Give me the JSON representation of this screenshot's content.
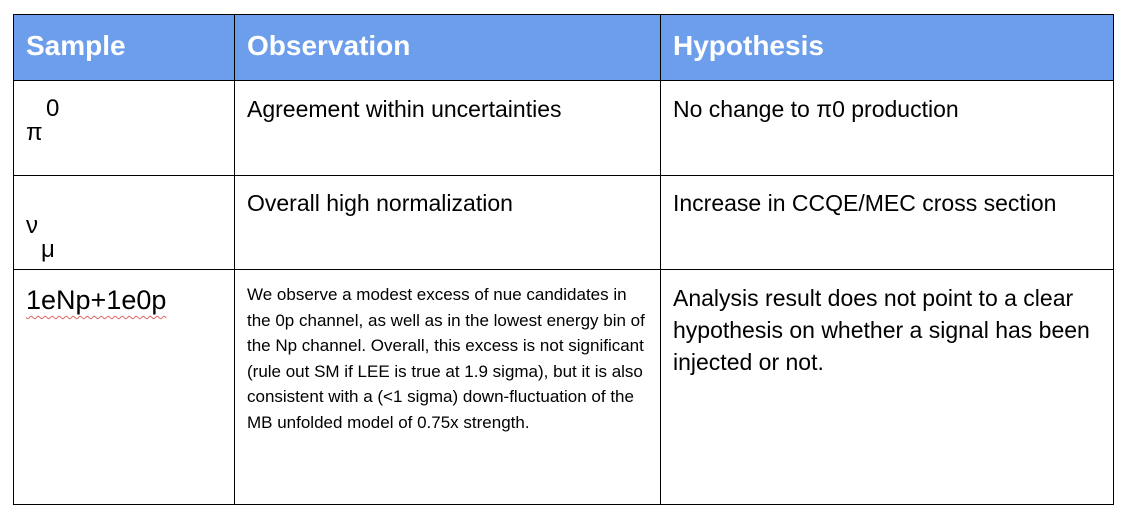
{
  "header": {
    "sample": "Sample",
    "observation": "Observation",
    "hypothesis": "Hypothesis"
  },
  "rows": [
    {
      "sample_base": "π",
      "sample_superscript": "0",
      "observation": "Agreement within uncertainties",
      "hypothesis": "No change to π0 production"
    },
    {
      "sample_base": "ν",
      "sample_subscript": "μ",
      "observation": "Overall high normalization",
      "hypothesis": "Increase in CCQE/MEC cross section"
    },
    {
      "sample": "1eNp+1e0p",
      "observation": "We observe a modest excess of nue candidates in the 0p channel, as well as in the lowest energy bin of the Np channel. Overall, this excess is not significant (rule out SM if LEE is true at 1.9 sigma), but it is also consistent with a (<1 sigma) down-fluctuation of the MB unfolded model of 0.75x strength.",
      "hypothesis": "Analysis result does not point to a clear hypothesis on whether a signal has been injected or not."
    }
  ],
  "colors": {
    "header_background": "#6d9eeb",
    "header_text": "#ffffff",
    "border": "#000000",
    "spellcheck_underline": "#e06666"
  }
}
